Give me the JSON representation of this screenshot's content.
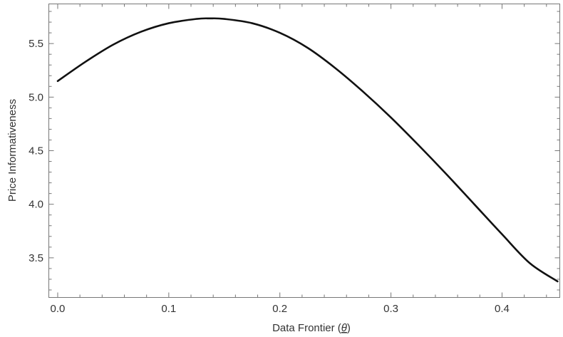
{
  "chart_data": {
    "type": "line",
    "xlabel": "Data Frontier (θ)",
    "xlabel_text": "Data Frontier (",
    "xlabel_symbol": "θ",
    "xlabel_close": ")",
    "ylabel": "Price Informativeness",
    "xlim": [
      -0.008,
      0.452
    ],
    "ylim": [
      3.13,
      5.87
    ],
    "x_ticks": [
      {
        "value": 0.0,
        "label": "0.0"
      },
      {
        "value": 0.1,
        "label": "0.1"
      },
      {
        "value": 0.2,
        "label": "0.2"
      },
      {
        "value": 0.3,
        "label": "0.3"
      },
      {
        "value": 0.4,
        "label": "0.4"
      }
    ],
    "y_ticks": [
      {
        "value": 3.5,
        "label": "3.5"
      },
      {
        "value": 4.0,
        "label": "4.0"
      },
      {
        "value": 4.5,
        "label": "4.5"
      },
      {
        "value": 5.0,
        "label": "5.0"
      },
      {
        "value": 5.5,
        "label": "5.5"
      }
    ],
    "grid": false,
    "series": [
      {
        "color": "#111111",
        "x": [
          0.0,
          0.025,
          0.05,
          0.075,
          0.1,
          0.125,
          0.137,
          0.15,
          0.175,
          0.2,
          0.225,
          0.25,
          0.275,
          0.3,
          0.325,
          0.35,
          0.375,
          0.4,
          0.425,
          0.45
        ],
        "y": [
          5.15,
          5.33,
          5.49,
          5.61,
          5.69,
          5.73,
          5.735,
          5.73,
          5.69,
          5.6,
          5.46,
          5.27,
          5.05,
          4.81,
          4.55,
          4.28,
          4.0,
          3.72,
          3.45,
          3.28
        ]
      }
    ]
  }
}
